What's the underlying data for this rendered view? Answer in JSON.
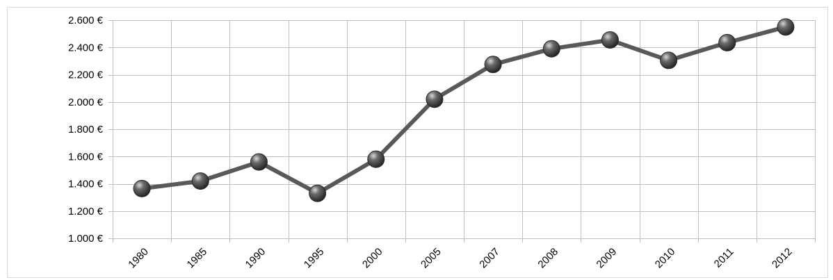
{
  "chart_data": {
    "type": "line",
    "categories": [
      "1980",
      "1985",
      "1990",
      "1995",
      "2000",
      "2005",
      "2007",
      "2008",
      "2009",
      "2010",
      "2011",
      "2012"
    ],
    "series": [
      {
        "values": [
          1365,
          1420,
          1560,
          1330,
          1580,
          2020,
          2275,
          2390,
          2455,
          2305,
          2435,
          2550
        ]
      }
    ],
    "y_ticks": [
      "1.000 €",
      "1.200 €",
      "1.400 €",
      "1.600 €",
      "1.800 €",
      "2.000 €",
      "2.200 €",
      "2.400 €",
      "2.600 €"
    ],
    "ylim": [
      1000,
      2600
    ],
    "grid": true,
    "legend": "none",
    "colors": {
      "line": "#595959",
      "marker": "#3a3a3a",
      "grid": "#bfbfbf"
    }
  }
}
